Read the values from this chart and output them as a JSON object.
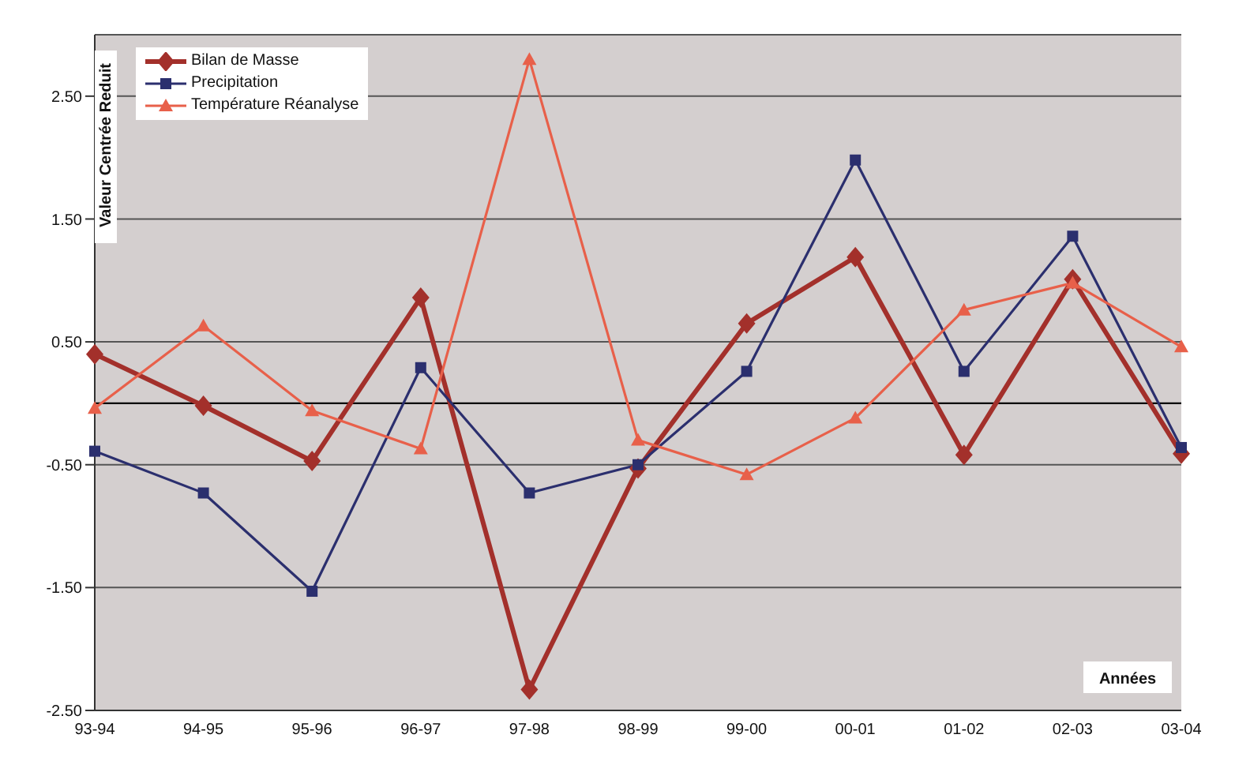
{
  "chart_data": {
    "type": "line",
    "categories": [
      "93-94",
      "94-95",
      "95-96",
      "96-97",
      "97-98",
      "98-99",
      "99-00",
      "00-01",
      "01-02",
      "02-03",
      "03-04"
    ],
    "series": [
      {
        "name": "Bilan de Masse",
        "color": "#a3302b",
        "marker": "diamond",
        "values": [
          0.4,
          -0.02,
          -0.47,
          0.86,
          -2.33,
          -0.53,
          0.65,
          1.19,
          -0.42,
          1.01,
          -0.41
        ]
      },
      {
        "name": "Precipitation",
        "color": "#2b2f6e",
        "marker": "square",
        "values": [
          -0.39,
          -0.73,
          -1.53,
          0.29,
          -0.73,
          -0.5,
          0.26,
          1.98,
          0.26,
          1.36,
          -0.36
        ]
      },
      {
        "name": "Température Réanalyse",
        "color": "#e8604a",
        "marker": "triangle",
        "values": [
          -0.04,
          0.63,
          -0.06,
          -0.37,
          2.8,
          -0.3,
          -0.58,
          -0.12,
          0.76,
          0.98,
          0.46
        ]
      }
    ],
    "ylabel": "Valeur Centrée Reduit",
    "xlabel": "Années",
    "ylim": [
      -2.5,
      3.0
    ],
    "yticks": [
      {
        "value": -2.5,
        "label": "-2.50"
      },
      {
        "value": -1.5,
        "label": "-1.50"
      },
      {
        "value": -0.5,
        "label": "-0.50"
      },
      {
        "value": 0.5,
        "label": "0.50"
      },
      {
        "value": 1.5,
        "label": "1.50"
      },
      {
        "value": 2.5,
        "label": "2.50"
      }
    ],
    "ref_lines": [
      {
        "axis": "y",
        "value": 0,
        "label": null,
        "color": "#000000"
      }
    ],
    "grid": "y",
    "legend": "top left",
    "line_style": "solid"
  }
}
